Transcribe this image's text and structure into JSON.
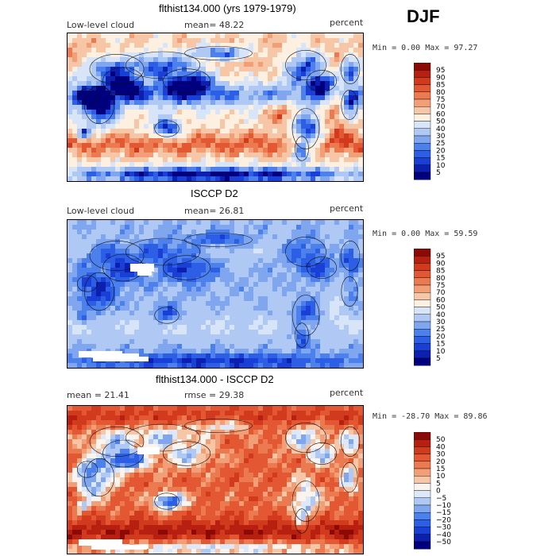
{
  "season": "DJF",
  "palette_pos": [
    "#00007f",
    "#0d1fae",
    "#1a3fd6",
    "#2c5fe6",
    "#4c80ec",
    "#80a6f0",
    "#b0c8f4",
    "#d8e5f8",
    "#fdf0e0",
    "#f7c6a6",
    "#f29e76",
    "#ec7a51",
    "#e35833",
    "#d23a1e",
    "#b71f10",
    "#8c0a05"
  ],
  "palette_diff": [
    "#00007f",
    "#0d1fae",
    "#1a3fd6",
    "#2c5fe6",
    "#4c80ec",
    "#80a6f0",
    "#b0c8f4",
    "#dde8fa",
    "#fbf4ee",
    "#f7c6a6",
    "#f29e76",
    "#ec7a51",
    "#e35833",
    "#d23a1e",
    "#b71f10",
    "#8c0a05"
  ],
  "panels": [
    {
      "title": "flthist134.000 (yrs 1979-1979)",
      "left_label": "Low-level cloud",
      "center_label": "mean=  48.22",
      "units": "percent",
      "range_text": "Min =    0.00 Max =   97.27",
      "levels": [
        "95",
        "90",
        "85",
        "80",
        "75",
        "70",
        "60",
        "50",
        "40",
        "30",
        "25",
        "20",
        "15",
        "10",
        "5"
      ],
      "field": "model"
    },
    {
      "title": "ISCCP D2",
      "left_label": "Low-level cloud",
      "center_label": "mean=  26.81",
      "units": "percent",
      "range_text": "Min =    0.00 Max =   59.59",
      "levels": [
        "95",
        "90",
        "85",
        "80",
        "75",
        "70",
        "60",
        "50",
        "40",
        "30",
        "25",
        "20",
        "15",
        "10",
        "5"
      ],
      "field": "obs"
    },
    {
      "title": "flthist134.000 - ISCCP D2",
      "left_label": "mean =  21.41",
      "center_label": "rmse =  29.38",
      "units": "percent",
      "range_text": "Min = -28.70 Max =   89.86",
      "levels": [
        "50",
        "40",
        "30",
        "20",
        "15",
        "10",
        "5",
        "0",
        "−5",
        "−10",
        "−15",
        "−20",
        "−30",
        "−40",
        "−50"
      ],
      "field": "diff"
    }
  ]
}
